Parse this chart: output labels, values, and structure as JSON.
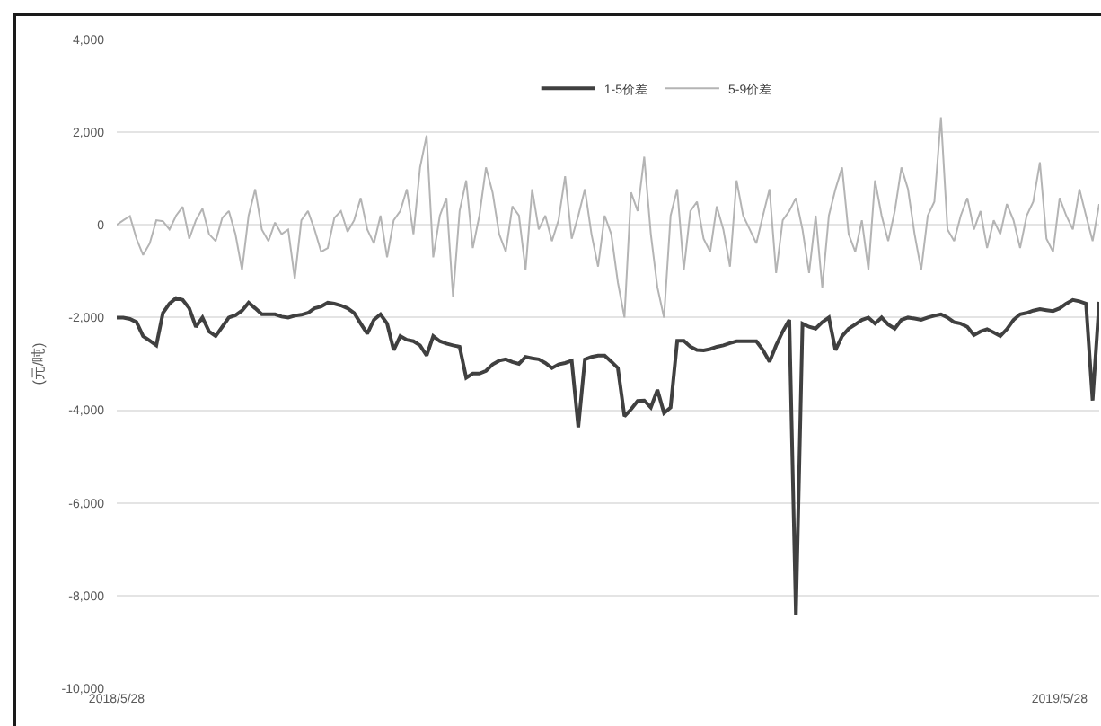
{
  "chart_data": {
    "type": "line",
    "ylabel": "(元/吨)",
    "categories": [
      "2018/5/28",
      null,
      null,
      null,
      null,
      null,
      null,
      null,
      null,
      null,
      null,
      null,
      null,
      null,
      null,
      null,
      null,
      null,
      null,
      null,
      null,
      null,
      null,
      null,
      null,
      null,
      null,
      null,
      null,
      null,
      null,
      null,
      null,
      null,
      null,
      null,
      null,
      null,
      null,
      null,
      null,
      null,
      null,
      null,
      null,
      null,
      null,
      null,
      null,
      null,
      null,
      null,
      null,
      null,
      null,
      null,
      null,
      null,
      null,
      null,
      null,
      null,
      null,
      null,
      null,
      null,
      null,
      null,
      null,
      null,
      null,
      null,
      null,
      null,
      null,
      null,
      null,
      null,
      null,
      null,
      null,
      null,
      null,
      null,
      null,
      null,
      null,
      null,
      null,
      null,
      null,
      null,
      null,
      null,
      null,
      null,
      null,
      null,
      null,
      null,
      null,
      null,
      null,
      null,
      null,
      null,
      null,
      null,
      null,
      null,
      null,
      null,
      null,
      null,
      null,
      null,
      null,
      null,
      null,
      null,
      null,
      null,
      null,
      null,
      null,
      null,
      null,
      null,
      null,
      null,
      null,
      null,
      null,
      null,
      null,
      null,
      null,
      null,
      null,
      null,
      null,
      null,
      null,
      "2019/5/28",
      null,
      null,
      null,
      null,
      null,
      null
    ],
    "series": [
      {
        "name": "1-5价差",
        "color": "#404040",
        "values": [
          -2000,
          -2000,
          -2030,
          -2100,
          -2400,
          -2500,
          -2600,
          -1900,
          -1700,
          -1580,
          -1620,
          -1800,
          -2200,
          -2000,
          -2300,
          -2400,
          -2200,
          -2000,
          -1950,
          -1850,
          -1680,
          -1800,
          -1930,
          -1930,
          -1930,
          -1980,
          -2000,
          -1960,
          -1940,
          -1900,
          -1800,
          -1760,
          -1680,
          -1700,
          -1740,
          -1800,
          -1900,
          -2130,
          -2350,
          -2050,
          -1930,
          -2130,
          -2700,
          -2400,
          -2480,
          -2510,
          -2600,
          -2820,
          -2400,
          -2510,
          -2560,
          -2600,
          -2630,
          -3300,
          -3210,
          -3210,
          -3150,
          -3010,
          -2930,
          -2900,
          -2960,
          -3000,
          -2850,
          -2880,
          -2900,
          -2980,
          -3090,
          -3010,
          -2980,
          -2930,
          -4370,
          -2900,
          -2850,
          -2820,
          -2820,
          -2950,
          -3090,
          -4130,
          -3980,
          -3800,
          -3790,
          -3940,
          -3560,
          -4060,
          -3940,
          -2500,
          -2500,
          -2630,
          -2700,
          -2710,
          -2680,
          -2630,
          -2600,
          -2550,
          -2510,
          -2510,
          -2510,
          -2510,
          -2700,
          -2950,
          -2600,
          -2300,
          -2050,
          -8430,
          -2130,
          -2200,
          -2240,
          -2100,
          -2000,
          -2700,
          -2400,
          -2240,
          -2150,
          -2050,
          -2000,
          -2130,
          -2000,
          -2150,
          -2240,
          -2050,
          -2000,
          -2020,
          -2050,
          -2000,
          -1960,
          -1930,
          -2000,
          -2100,
          -2130,
          -2200,
          -2380,
          -2300,
          -2250,
          -2320,
          -2400,
          -2250,
          -2050,
          -1930,
          -1900,
          -1850,
          -1820,
          -1840,
          -1860,
          -1800,
          -1700,
          -1620,
          -1650,
          -1700,
          -3790,
          -1660
        ]
      },
      {
        "name": "5-9价差",
        "color": "#b4b4b4",
        "values": [
          0,
          100,
          190,
          -300,
          -650,
          -400,
          100,
          80,
          -100,
          200,
          390,
          -300,
          100,
          350,
          -200,
          -350,
          150,
          300,
          -200,
          -970,
          200,
          770,
          -100,
          -350,
          50,
          -200,
          -100,
          -1160,
          100,
          300,
          -100,
          -580,
          -500,
          150,
          300,
          -150,
          100,
          580,
          -100,
          -400,
          200,
          -700,
          100,
          300,
          770,
          -200,
          1240,
          1930,
          -700,
          200,
          580,
          -1550,
          300,
          960,
          -500,
          200,
          1240,
          700,
          -200,
          -580,
          400,
          200,
          -970,
          770,
          -100,
          200,
          -350,
          100,
          1050,
          -300,
          200,
          770,
          -200,
          -900,
          200,
          -200,
          -1240,
          -2000,
          700,
          300,
          1470,
          -200,
          -1350,
          -2000,
          200,
          770,
          -970,
          300,
          500,
          -300,
          -580,
          400,
          -100,
          -900,
          960,
          200,
          -100,
          -400,
          200,
          770,
          -1040,
          100,
          300,
          580,
          -100,
          -1040,
          200,
          -1350,
          200,
          770,
          1240,
          -200,
          -580,
          100,
          -970,
          960,
          200,
          -350,
          300,
          1240,
          770,
          -200,
          -970,
          200,
          500,
          2320,
          -100,
          -350,
          200,
          580,
          -100,
          300,
          -500,
          100,
          -200,
          450,
          100,
          -500,
          200,
          500,
          1350,
          -300,
          -580,
          580,
          200,
          -100,
          770,
          200,
          -350,
          450
        ]
      }
    ],
    "ylim": [
      -10000,
      4000
    ],
    "yticks": [
      {
        "value": -10000,
        "label": "-10,000"
      },
      {
        "value": -8000,
        "label": "-8,000"
      },
      {
        "value": -6000,
        "label": "-6,000"
      },
      {
        "value": -4000,
        "label": "-4,000"
      },
      {
        "value": -2000,
        "label": "-2,000"
      },
      0,
      {
        "value": 2000,
        "label": "2,000"
      },
      {
        "value": 4000,
        "label": "4,000"
      }
    ],
    "grid": "y",
    "legend": "top"
  }
}
